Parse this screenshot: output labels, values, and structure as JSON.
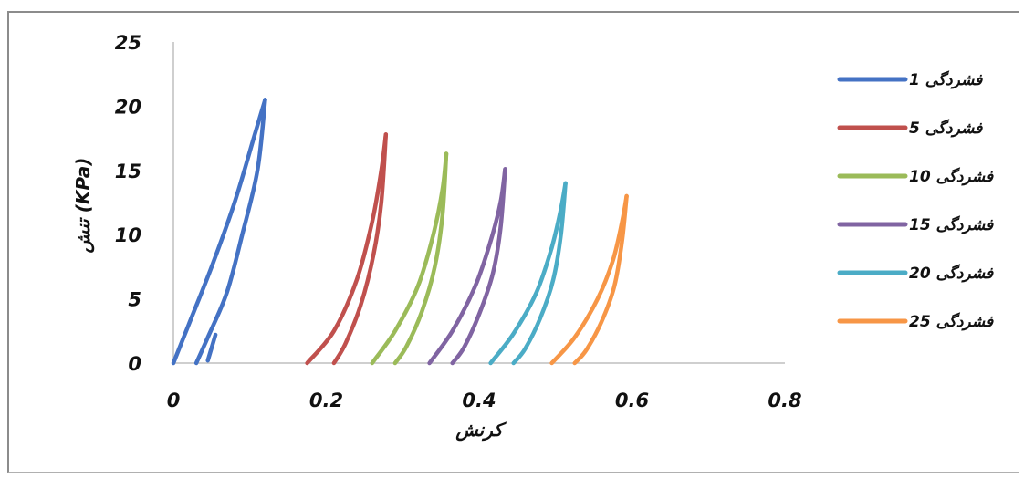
{
  "chart_data": {
    "type": "line",
    "xlabel": "کرنش",
    "ylabel": "تنش (KPa)",
    "xlim": [
      0,
      0.8
    ],
    "ylim": [
      0,
      25
    ],
    "x_ticks": [
      "0",
      "0.2",
      "0.4",
      "0.6",
      "0.8"
    ],
    "y_ticks": [
      "0",
      "5",
      "10",
      "15",
      "20",
      "25"
    ],
    "grid": false,
    "legend_position": "right",
    "series": [
      {
        "name": "1 فشردگی",
        "color": "#4472C4",
        "loading": [
          [
            0.0,
            0.0
          ],
          [
            0.02,
            3.0
          ],
          [
            0.05,
            7.5
          ],
          [
            0.08,
            12.5
          ],
          [
            0.105,
            17.5
          ],
          [
            0.12,
            20.5
          ]
        ],
        "unloading": [
          [
            0.12,
            20.5
          ],
          [
            0.11,
            15.0
          ],
          [
            0.09,
            10.0
          ],
          [
            0.07,
            5.5
          ],
          [
            0.045,
            2.0
          ],
          [
            0.03,
            0.0
          ]
        ],
        "extra": [
          [
            0.045,
            0.2
          ],
          [
            0.055,
            2.2
          ]
        ]
      },
      {
        "name": "5 فشردگی",
        "color": "#C0504D",
        "loading": [
          [
            0.175,
            0.0
          ],
          [
            0.21,
            2.5
          ],
          [
            0.24,
            6.5
          ],
          [
            0.26,
            11.0
          ],
          [
            0.272,
            15.0
          ],
          [
            0.278,
            17.8
          ]
        ],
        "unloading": [
          [
            0.278,
            17.8
          ],
          [
            0.272,
            12.5
          ],
          [
            0.262,
            8.5
          ],
          [
            0.245,
            4.5
          ],
          [
            0.225,
            1.5
          ],
          [
            0.21,
            0.0
          ]
        ]
      },
      {
        "name": "10 فشردگی",
        "color": "#9BBB59",
        "loading": [
          [
            0.26,
            0.0
          ],
          [
            0.29,
            2.5
          ],
          [
            0.32,
            6.0
          ],
          [
            0.34,
            10.0
          ],
          [
            0.352,
            13.5
          ],
          [
            0.357,
            16.3
          ]
        ],
        "unloading": [
          [
            0.357,
            16.3
          ],
          [
            0.352,
            11.5
          ],
          [
            0.342,
            7.5
          ],
          [
            0.325,
            4.0
          ],
          [
            0.305,
            1.3
          ],
          [
            0.29,
            0.0
          ]
        ]
      },
      {
        "name": "15 فشردگی",
        "color": "#8064A2",
        "loading": [
          [
            0.335,
            0.0
          ],
          [
            0.365,
            2.5
          ],
          [
            0.395,
            6.0
          ],
          [
            0.415,
            9.5
          ],
          [
            0.428,
            12.5
          ],
          [
            0.434,
            15.1
          ]
        ],
        "unloading": [
          [
            0.434,
            15.1
          ],
          [
            0.428,
            10.5
          ],
          [
            0.418,
            7.0
          ],
          [
            0.4,
            3.8
          ],
          [
            0.38,
            1.2
          ],
          [
            0.365,
            0.0
          ]
        ]
      },
      {
        "name": "20 فشردگی",
        "color": "#4BACC6",
        "loading": [
          [
            0.415,
            0.0
          ],
          [
            0.445,
            2.3
          ],
          [
            0.475,
            5.5
          ],
          [
            0.495,
            9.0
          ],
          [
            0.507,
            12.0
          ],
          [
            0.513,
            14.0
          ]
        ],
        "unloading": [
          [
            0.513,
            14.0
          ],
          [
            0.507,
            10.0
          ],
          [
            0.497,
            6.5
          ],
          [
            0.48,
            3.5
          ],
          [
            0.46,
            1.1
          ],
          [
            0.445,
            0.0
          ]
        ]
      },
      {
        "name": "25 فشردگی",
        "color": "#F79646",
        "loading": [
          [
            0.495,
            0.0
          ],
          [
            0.525,
            2.0
          ],
          [
            0.555,
            5.0
          ],
          [
            0.575,
            8.0
          ],
          [
            0.587,
            11.0
          ],
          [
            0.593,
            13.0
          ]
        ],
        "unloading": [
          [
            0.593,
            13.0
          ],
          [
            0.587,
            9.5
          ],
          [
            0.577,
            6.0
          ],
          [
            0.56,
            3.2
          ],
          [
            0.54,
            1.0
          ],
          [
            0.525,
            0.0
          ]
        ]
      }
    ]
  }
}
